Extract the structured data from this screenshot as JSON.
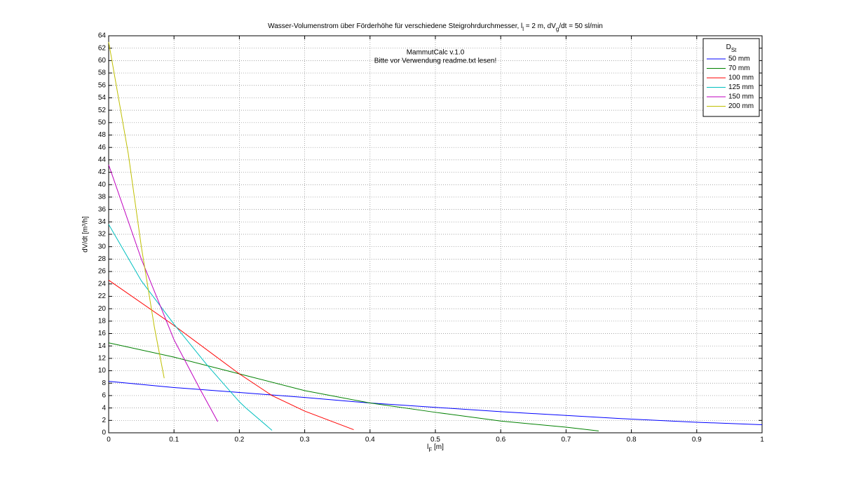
{
  "chart_data": {
    "type": "line",
    "title": [
      "Wasser-Volumenstrom über Förderhöhe für verschiedene Steigrohrdurchmesser, l",
      "l",
      " = 2 m, dV",
      "g",
      "/dt = 50 sl/min"
    ],
    "xlabel": [
      "l",
      "F",
      " [m]"
    ],
    "ylabel": "dV/dt [m³/h]",
    "annotations": [
      "MammutCalc v.1.0",
      "Bitte vor Verwendung readme.txt lesen!"
    ],
    "legend_title": [
      "D",
      "St"
    ],
    "legend": "northeast",
    "grid": true,
    "xlim": [
      0,
      1
    ],
    "xticks": [
      0,
      0.1,
      0.2,
      0.3,
      0.4,
      0.5,
      0.6,
      0.7,
      0.8,
      0.9,
      1
    ],
    "ylim": [
      0,
      64
    ],
    "yticks": [
      0,
      2,
      4,
      6,
      8,
      10,
      12,
      14,
      16,
      18,
      20,
      22,
      24,
      26,
      28,
      30,
      32,
      34,
      36,
      38,
      40,
      42,
      44,
      46,
      48,
      50,
      52,
      54,
      56,
      58,
      60,
      62,
      64
    ],
    "series": [
      {
        "name": "50 mm",
        "color": "#0000ff",
        "x": [
          0,
          0.1,
          0.2,
          0.3,
          0.4,
          0.5,
          0.6,
          0.7,
          0.8,
          0.9,
          1
        ],
        "values": [
          8.3,
          7.3,
          6.5,
          5.7,
          4.8,
          4.1,
          3.4,
          2.8,
          2.2,
          1.7,
          1.3
        ]
      },
      {
        "name": "70 mm",
        "color": "#008000",
        "x": [
          0,
          0.1,
          0.2,
          0.3,
          0.4,
          0.5,
          0.6,
          0.7,
          0.75
        ],
        "values": [
          14.5,
          12.2,
          9.5,
          6.8,
          4.8,
          3.3,
          1.9,
          0.9,
          0.3
        ]
      },
      {
        "name": "100 mm",
        "color": "#ff0000",
        "x": [
          0,
          0.1,
          0.2,
          0.25,
          0.3,
          0.375
        ],
        "values": [
          24.6,
          17.3,
          9.5,
          6.0,
          3.5,
          0.5
        ]
      },
      {
        "name": "125 mm",
        "color": "#00bfbf",
        "x": [
          0,
          0.05,
          0.1,
          0.15,
          0.2,
          0.21,
          0.25
        ],
        "values": [
          33.6,
          24.5,
          17.5,
          11,
          5,
          4,
          0.4
        ]
      },
      {
        "name": "150 mm",
        "color": "#bf00bf",
        "x": [
          0,
          0.05,
          0.1,
          0.14,
          0.167
        ],
        "values": [
          43.2,
          28,
          15,
          7,
          1.8
        ]
      },
      {
        "name": "200 mm",
        "color": "#bfbf00",
        "x": [
          0,
          0.03,
          0.05,
          0.07,
          0.085
        ],
        "values": [
          63,
          45,
          30,
          17,
          8.8
        ]
      }
    ]
  }
}
